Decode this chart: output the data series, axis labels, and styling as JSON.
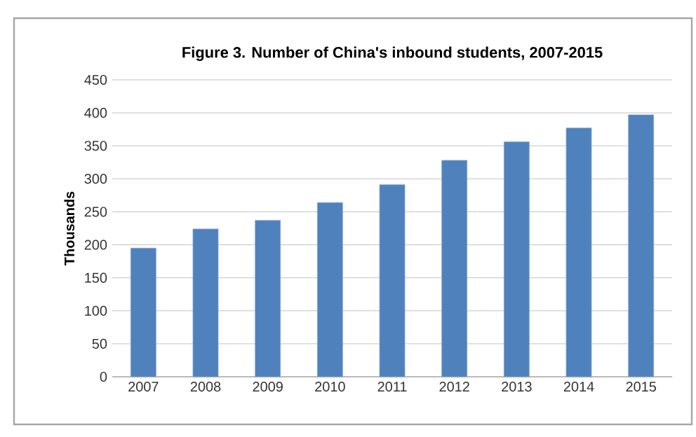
{
  "chart_data": {
    "type": "bar",
    "title": "Figure 3. Number of China's inbound students, 2007-2015",
    "ylabel": "Thousands",
    "categories": [
      "2007",
      "2008",
      "2009",
      "2010",
      "2011",
      "2012",
      "2013",
      "2014",
      "2015"
    ],
    "values": [
      195,
      224,
      237,
      264,
      291,
      328,
      356,
      377,
      397
    ],
    "color": "#4f81bd",
    "ylim": [
      0,
      450
    ],
    "yticks": [
      0,
      50,
      100,
      150,
      200,
      250,
      300,
      350,
      400,
      450
    ],
    "grid": "y"
  }
}
